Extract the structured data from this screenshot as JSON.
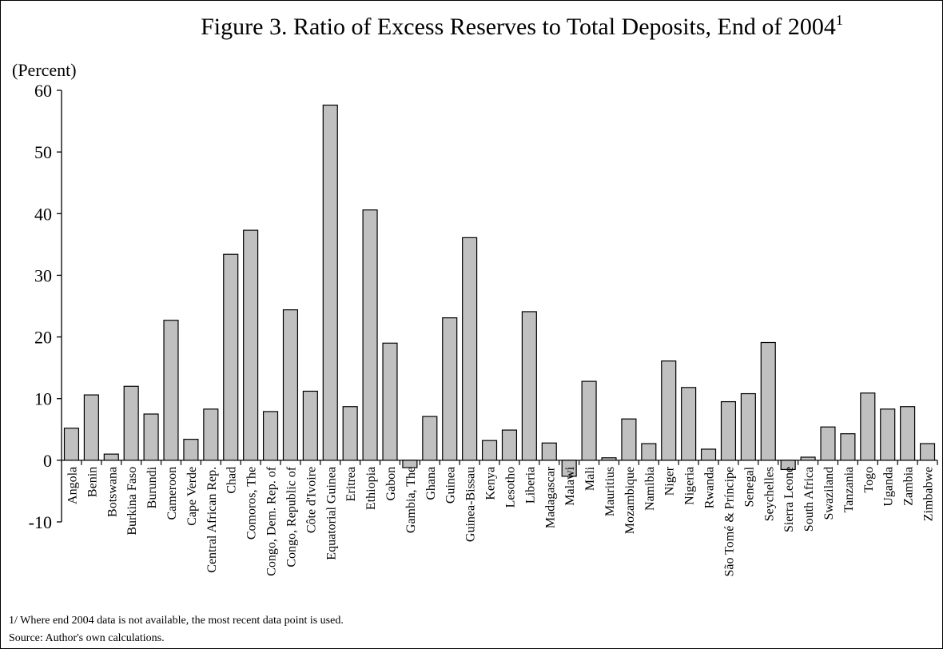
{
  "chart_data": {
    "type": "bar",
    "title": "Figure 3. Ratio of Excess Reserves to Total Deposits, End of 2004",
    "title_superscript": "1",
    "ylabel": "(Percent)",
    "xlabel": "",
    "ylim": [
      -10,
      60
    ],
    "yticks": [
      -10,
      0,
      10,
      20,
      30,
      40,
      50,
      60
    ],
    "grid": false,
    "legend": "none",
    "categories": [
      "Angola",
      "Benin",
      "Botswana",
      "Burkina Faso",
      "Burundi",
      "Cameroon",
      "Cape Verde",
      "Central African Rep.",
      "Chad",
      "Comoros, The",
      "Congo, Dem. Rep. of",
      "Congo, Republic of",
      "Côte d'Ivoire",
      "Equatorial Guinea",
      "Eritrea",
      "Ethiopia",
      "Gabon",
      "Gambia, The",
      "Ghana",
      "Guinea",
      "Guinea-Bissau",
      "Kenya",
      "Lesotho",
      "Liberia",
      "Madagascar",
      "Malawi",
      "Mali",
      "Mauritius",
      "Mozambique",
      "Namibia",
      "Niger",
      "Nigeria",
      "Rwanda",
      "São Tomé & Príncipe",
      "Senegal",
      "Seychelles",
      "Sierra Leone",
      "South Africa",
      "Swaziland",
      "Tanzania",
      "Togo",
      "Uganda",
      "Zambia",
      "Zimbabwe"
    ],
    "values": [
      5.2,
      10.6,
      1.0,
      12.0,
      7.5,
      22.7,
      3.4,
      8.3,
      33.4,
      37.3,
      7.9,
      24.4,
      11.2,
      57.6,
      8.7,
      40.6,
      19.0,
      -1.2,
      7.1,
      23.1,
      36.1,
      3.2,
      4.9,
      24.1,
      2.8,
      -2.6,
      12.8,
      0.4,
      6.7,
      2.7,
      16.1,
      11.8,
      1.8,
      9.5,
      10.8,
      19.1,
      -1.5,
      0.5,
      5.4,
      4.3,
      10.9,
      8.3,
      8.7,
      2.7
    ],
    "bar_color": "#c0c0c0",
    "bar_outline": "#000000"
  },
  "notes": {
    "footnote": "1/ Where end 2004 data is not available, the most recent data point is used.",
    "source": "Source: Author's own calculations."
  }
}
